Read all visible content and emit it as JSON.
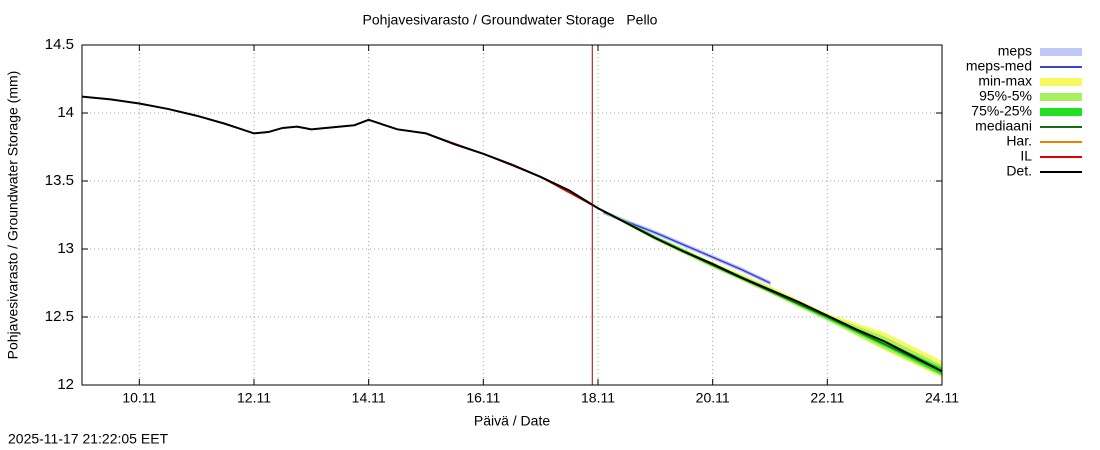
{
  "chart_data": {
    "type": "line",
    "title": "Pohjavesivarasto / Groundwater Storage   Pello",
    "x_label": "Päivä / Date",
    "y_label": "Pohjavesivarasto / Groundwater Storage (mm)",
    "timestamp": "2025-11-17 21:22:05 EET",
    "xlim": [
      9,
      24
    ],
    "ylim": [
      12,
      14.5
    ],
    "xticks": [
      {
        "value": 10,
        "label": "10.11"
      },
      {
        "value": 12,
        "label": "12.11"
      },
      {
        "value": 14,
        "label": "14.11"
      },
      {
        "value": 16,
        "label": "16.11"
      },
      {
        "value": 18,
        "label": "18.11"
      },
      {
        "value": 20,
        "label": "20.11"
      },
      {
        "value": 22,
        "label": "22.11"
      },
      {
        "value": 24,
        "label": "24.11"
      }
    ],
    "yticks": [
      12,
      12.5,
      13,
      13.5,
      14,
      14.5
    ],
    "grid": true,
    "legend": "right",
    "vline": {
      "x": 17.9,
      "color": "#a00000"
    },
    "series": [
      {
        "name": "meps",
        "color": "#c0c8f8",
        "kind": "band",
        "x": [
          18.1,
          18.5,
          19,
          19.5,
          20,
          20.5,
          21
        ],
        "low": [
          13.26,
          13.19,
          13.11,
          13.02,
          12.93,
          12.84,
          12.74
        ],
        "high": [
          13.28,
          13.21,
          13.13,
          13.04,
          12.95,
          12.86,
          12.76
        ]
      },
      {
        "name": "meps-med",
        "color": "#4040d0",
        "kind": "line",
        "x": [
          18.1,
          18.5,
          19,
          19.5,
          20,
          20.5,
          21
        ],
        "values": [
          13.27,
          13.2,
          13.12,
          13.03,
          12.94,
          12.85,
          12.75
        ]
      },
      {
        "name": "min-max",
        "color": "#f8f860",
        "kind": "band",
        "x": [
          18,
          19,
          20,
          21,
          22,
          23,
          24
        ],
        "low": [
          13.3,
          13.07,
          12.87,
          12.68,
          12.48,
          12.26,
          12.06
        ],
        "high": [
          13.3,
          13.09,
          12.9,
          12.72,
          12.52,
          12.38,
          12.17
        ]
      },
      {
        "name": "95%-5%",
        "color": "#a8f060",
        "kind": "band",
        "x": [
          18,
          19,
          20,
          21,
          22,
          23,
          24
        ],
        "low": [
          13.3,
          13.07,
          12.87,
          12.68,
          12.48,
          12.27,
          12.07
        ],
        "high": [
          13.3,
          13.09,
          12.89,
          12.71,
          12.51,
          12.35,
          12.14
        ]
      },
      {
        "name": "75%-25%",
        "color": "#20e020",
        "kind": "band",
        "x": [
          18,
          19,
          20,
          21,
          22,
          23,
          24
        ],
        "low": [
          13.3,
          13.08,
          12.88,
          12.69,
          12.49,
          12.29,
          12.08
        ],
        "high": [
          13.3,
          13.09,
          12.89,
          12.7,
          12.5,
          12.32,
          12.12
        ]
      },
      {
        "name": "mediaani",
        "color": "#107010",
        "kind": "line",
        "x": [
          18,
          19,
          20,
          21,
          22,
          23,
          24
        ],
        "values": [
          13.3,
          13.08,
          12.88,
          12.69,
          12.5,
          12.3,
          12.1
        ]
      },
      {
        "name": "Har.",
        "color": "#f08000",
        "kind": "line",
        "x": [
          15,
          16,
          17,
          18
        ],
        "values": [
          13.85,
          13.7,
          13.53,
          13.3
        ]
      },
      {
        "name": "IL",
        "color": "#e00000",
        "kind": "line",
        "x": [
          15,
          16,
          17,
          18
        ],
        "values": [
          13.85,
          13.7,
          13.53,
          13.3
        ]
      },
      {
        "name": "Det.",
        "color": "#000000",
        "kind": "line",
        "x": [
          9,
          9.5,
          10,
          10.5,
          11,
          11.5,
          12,
          12.25,
          12.5,
          12.75,
          13,
          13.5,
          13.75,
          14,
          14.5,
          15,
          15.5,
          16,
          16.5,
          17,
          17.5,
          18,
          18.5,
          19,
          19.5,
          20,
          20.5,
          21,
          21.5,
          22,
          22.5,
          23,
          23.5,
          24
        ],
        "values": [
          14.12,
          14.1,
          14.07,
          14.03,
          13.98,
          13.92,
          13.85,
          13.86,
          13.89,
          13.9,
          13.88,
          13.9,
          13.91,
          13.95,
          13.88,
          13.85,
          13.77,
          13.7,
          13.62,
          13.53,
          13.43,
          13.3,
          13.19,
          13.08,
          12.98,
          12.89,
          12.79,
          12.7,
          12.61,
          12.51,
          12.41,
          12.32,
          12.21,
          12.1
        ]
      }
    ]
  }
}
